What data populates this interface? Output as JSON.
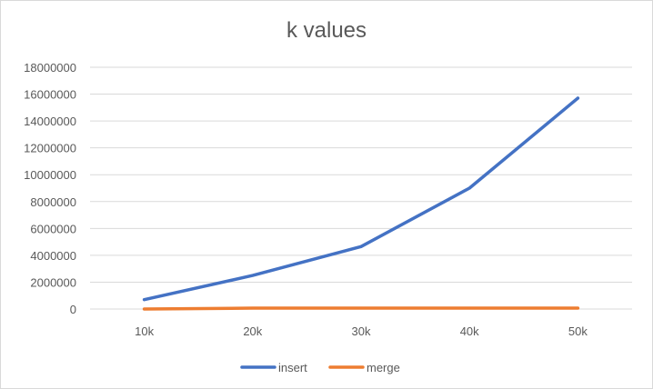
{
  "chart_data": {
    "type": "line",
    "title": "k values",
    "categories": [
      "10k",
      "20k",
      "30k",
      "40k",
      "50k"
    ],
    "series": [
      {
        "name": "insert",
        "values": [
          700000,
          2500000,
          4650000,
          9000000,
          15700000
        ],
        "color": "#4472C4"
      },
      {
        "name": "merge",
        "values": [
          0,
          70000,
          70000,
          70000,
          70000
        ],
        "color": "#ED7D31"
      }
    ],
    "yticks": [
      0,
      2000000,
      4000000,
      6000000,
      8000000,
      10000000,
      12000000,
      14000000,
      16000000,
      18000000
    ],
    "ylim": [
      0,
      18000000
    ],
    "grid": true,
    "legend_position": "bottom"
  }
}
